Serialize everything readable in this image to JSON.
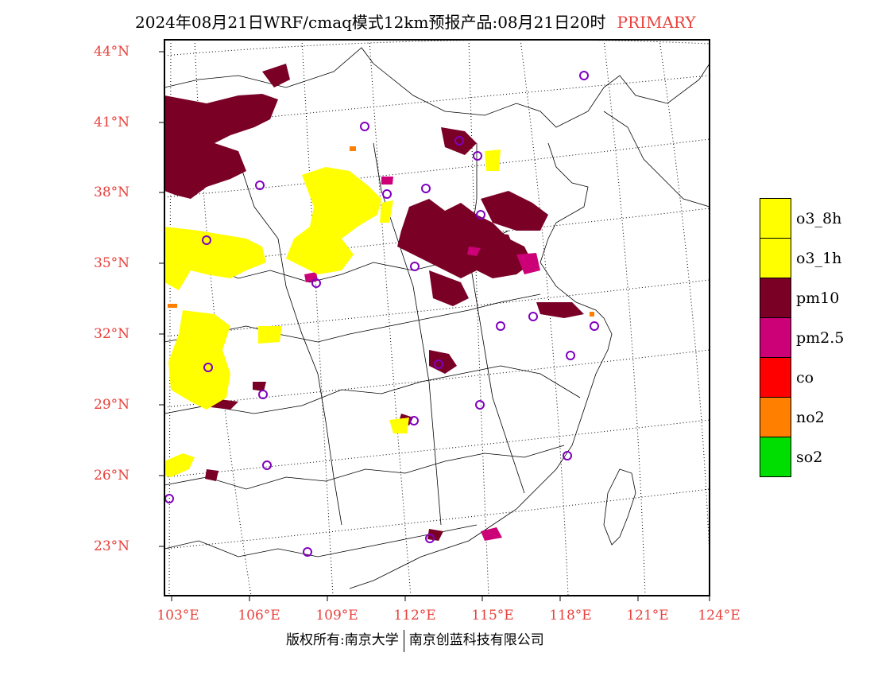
{
  "header": {
    "title": "2024年08月21日WRF/cmaq模式12km预报产品:08月21日20时",
    "tag": "PRIMARY"
  },
  "axes": {
    "lat_labels": [
      "44°N",
      "41°N",
      "38°N",
      "35°N",
      "32°N",
      "29°N",
      "26°N",
      "23°N"
    ],
    "lon_labels": [
      "103°E",
      "106°E",
      "109°E",
      "112°E",
      "115°E",
      "118°E",
      "121°E",
      "124°E"
    ]
  },
  "legend": {
    "items": [
      {
        "label": "o3_8h",
        "color": "#ffff00"
      },
      {
        "label": "o3_1h",
        "color": "#ffff00"
      },
      {
        "label": "pm10",
        "color": "#7a0026"
      },
      {
        "label": "pm2.5",
        "color": "#cc0077"
      },
      {
        "label": "co",
        "color": "#ff0000"
      },
      {
        "label": "no2",
        "color": "#ff7f00"
      },
      {
        "label": "so2",
        "color": "#00dd00"
      }
    ]
  },
  "footer": {
    "left": "版权所有:南京大学",
    "right": "南京创蓝科技有限公司"
  },
  "colors": {
    "tick_text": "#e8413c",
    "city_marker": "#8000c0"
  }
}
